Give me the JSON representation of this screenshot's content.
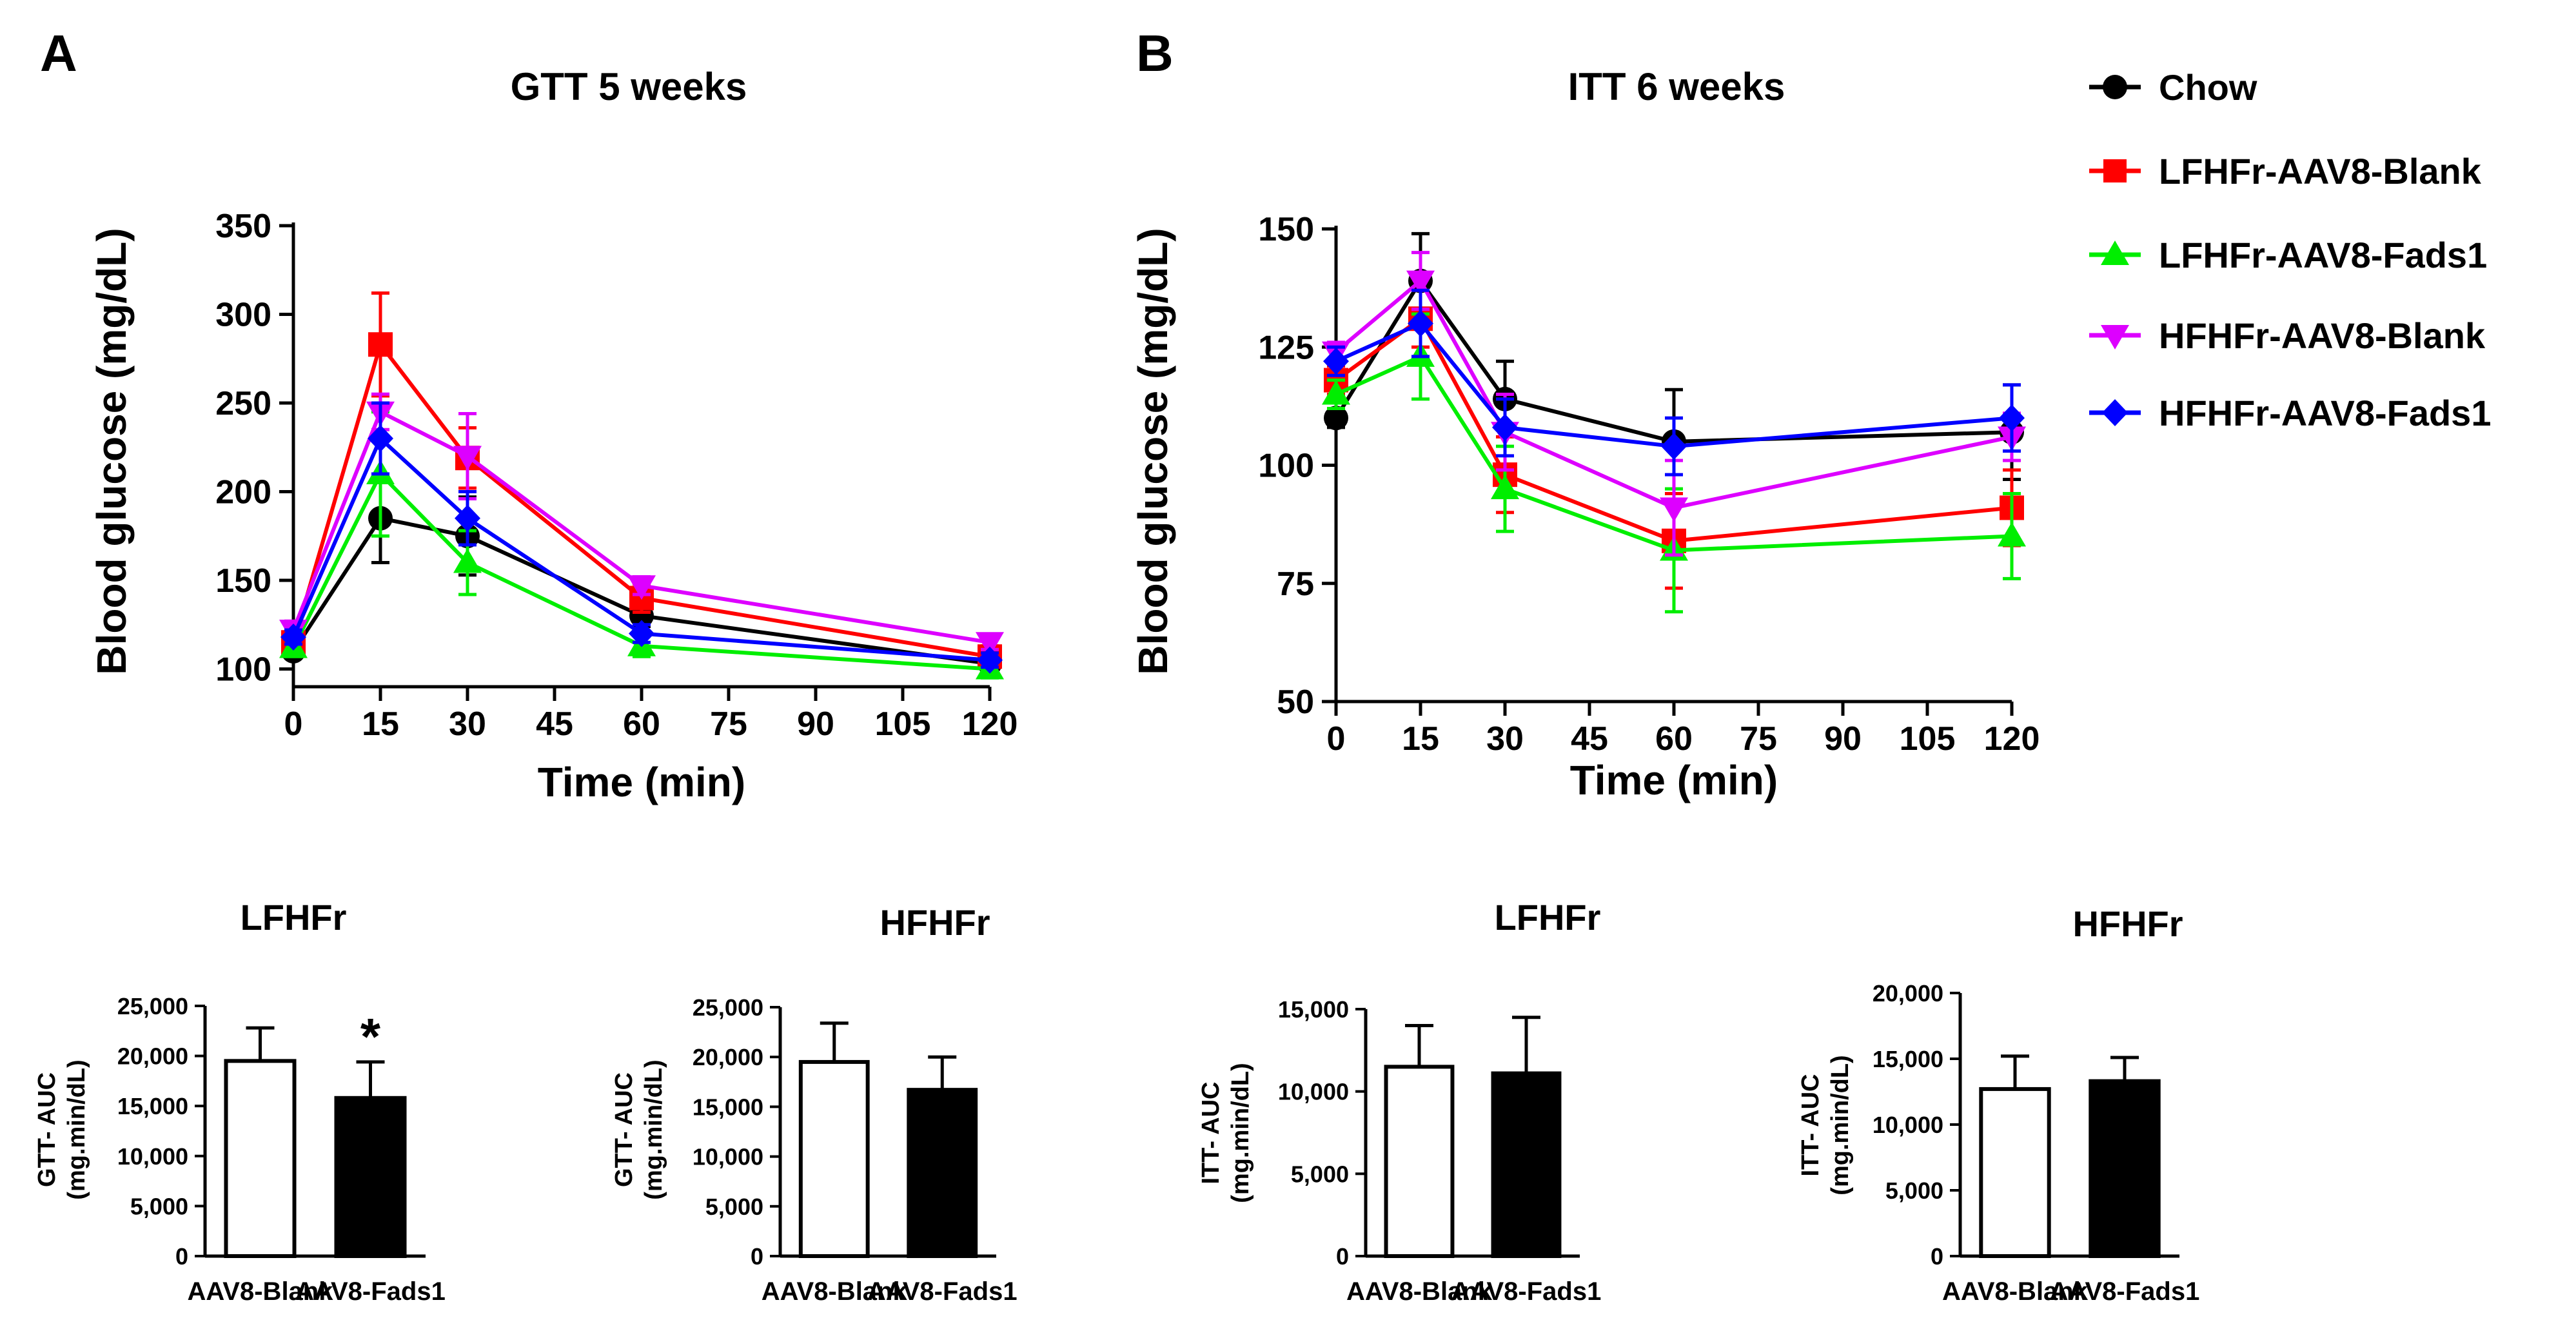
{
  "panel_labels": {
    "a": "A",
    "b": "B"
  },
  "legend": [
    {
      "name": "Chow",
      "color": "#000000",
      "marker": "circle"
    },
    {
      "name": "LFHFr-AAV8-Blank",
      "color": "#ff0000",
      "marker": "square"
    },
    {
      "name": "LFHFr-AAV8-Fads1",
      "color": "#00ee00",
      "marker": "triangle-up"
    },
    {
      "name": "HFHFr-AAV8-Blank",
      "color": "#dd00ff",
      "marker": "triangle-down"
    },
    {
      "name": "HFHFr-AAV8-Fads1",
      "color": "#0000ff",
      "marker": "diamond"
    }
  ],
  "chart_data": [
    {
      "type": "line",
      "title": "GTT 5 weeks",
      "xlabel": "Time (min)",
      "ylabel": "Blood glucose (mg/dL)",
      "x": [
        0,
        15,
        30,
        60,
        120
      ],
      "xticks": [
        0,
        15,
        30,
        45,
        60,
        75,
        90,
        105,
        120
      ],
      "xlim": [
        0,
        120
      ],
      "yticks": [
        100,
        150,
        200,
        250,
        300,
        350
      ],
      "ylim": [
        90,
        350
      ],
      "series": [
        {
          "name": "Chow",
          "values": [
            110,
            185,
            175,
            130,
            103
          ],
          "err": [
            3,
            25,
            22,
            6,
            4
          ]
        },
        {
          "name": "LFHFr-AAV8-Blank",
          "values": [
            115,
            283,
            219,
            140,
            107
          ],
          "err": [
            4,
            29,
            17,
            8,
            6
          ]
        },
        {
          "name": "LFHFr-AAV8-Fads1",
          "values": [
            112,
            210,
            160,
            113,
            100
          ],
          "err": [
            5,
            35,
            18,
            6,
            5
          ]
        },
        {
          "name": "HFHFr-AAV8-Blank",
          "values": [
            122,
            245,
            220,
            147,
            115
          ],
          "err": [
            5,
            10,
            24,
            5,
            4
          ]
        },
        {
          "name": "HFHFr-AAV8-Fads1",
          "values": [
            118,
            230,
            185,
            120,
            105
          ],
          "err": [
            4,
            20,
            15,
            5,
            4
          ]
        }
      ]
    },
    {
      "type": "line",
      "title": "ITT 6 weeks",
      "xlabel": "Time (min)",
      "ylabel": "Blood glucose (mg/dL)",
      "x": [
        0,
        15,
        30,
        60,
        120
      ],
      "xticks": [
        0,
        15,
        30,
        45,
        60,
        75,
        90,
        105,
        120
      ],
      "xlim": [
        0,
        120
      ],
      "yticks": [
        50,
        75,
        100,
        125,
        150
      ],
      "ylim": [
        50,
        150
      ],
      "series": [
        {
          "name": "Chow",
          "values": [
            110,
            139,
            114,
            105,
            107
          ],
          "err": [
            2,
            10,
            8,
            11,
            10
          ]
        },
        {
          "name": "LFHFr-AAV8-Blank",
          "values": [
            118,
            131,
            98,
            84,
            91
          ],
          "err": [
            3,
            6,
            8,
            10,
            8
          ]
        },
        {
          "name": "LFHFr-AAV8-Fads1",
          "values": [
            115,
            123,
            95,
            82,
            85
          ],
          "err": [
            3,
            9,
            9,
            13,
            9
          ]
        },
        {
          "name": "HFHFr-AAV8-Blank",
          "values": [
            124,
            139,
            107,
            91,
            106
          ],
          "err": [
            2,
            6,
            8,
            10,
            5
          ]
        },
        {
          "name": "HFHFr-AAV8-Fads1",
          "values": [
            122,
            130,
            108,
            104,
            110
          ],
          "err": [
            3,
            7,
            6,
            6,
            7
          ]
        }
      ]
    },
    {
      "type": "bar",
      "title": "LFHFr",
      "ylabel": "GTT- AUC (mg.min/dL)",
      "categories": [
        "AAV8-Blank",
        "AAV8-Fads1"
      ],
      "values": [
        19500,
        15800
      ],
      "err": [
        3300,
        3600
      ],
      "ylim": [
        0,
        25000
      ],
      "yticks": [
        "0",
        "5,000",
        "10,000",
        "15,000",
        "20,000",
        "25,000"
      ],
      "fill": [
        "#ffffff",
        "#000000"
      ],
      "annotations": [
        "",
        "*"
      ]
    },
    {
      "type": "bar",
      "title": "HFHFr",
      "ylabel": "GTT- AUC (mg.min/dL)",
      "categories": [
        "AAV8-Blank",
        "AAV8-Fads1"
      ],
      "values": [
        19500,
        16700
      ],
      "err": [
        3900,
        3300
      ],
      "ylim": [
        0,
        25000
      ],
      "yticks": [
        "0",
        "5,000",
        "10,000",
        "15,000",
        "20,000",
        "25,000"
      ],
      "fill": [
        "#ffffff",
        "#000000"
      ],
      "annotations": [
        "",
        ""
      ]
    },
    {
      "type": "bar",
      "title": "LFHFr",
      "ylabel": "ITT- AUC (mg.min/dL)",
      "categories": [
        "AAV8-Blank",
        "AAV8-Fads1"
      ],
      "values": [
        11500,
        11100
      ],
      "err": [
        2500,
        3400
      ],
      "ylim": [
        0,
        15000
      ],
      "yticks": [
        "0",
        "5,000",
        "10,000",
        "15,000"
      ],
      "fill": [
        "#ffffff",
        "#000000"
      ],
      "annotations": [
        "",
        ""
      ]
    },
    {
      "type": "bar",
      "title": "HFHFr",
      "ylabel": "ITT- AUC (mg.min/dL)",
      "categories": [
        "AAV8-Blank",
        "AAV8-Fads1"
      ],
      "values": [
        12700,
        13300
      ],
      "err": [
        2500,
        1800
      ],
      "ylim": [
        0,
        20000
      ],
      "yticks": [
        "0",
        "5,000",
        "10,000",
        "15,000",
        "20,000"
      ],
      "fill": [
        "#ffffff",
        "#000000"
      ],
      "annotations": [
        "",
        ""
      ]
    }
  ]
}
